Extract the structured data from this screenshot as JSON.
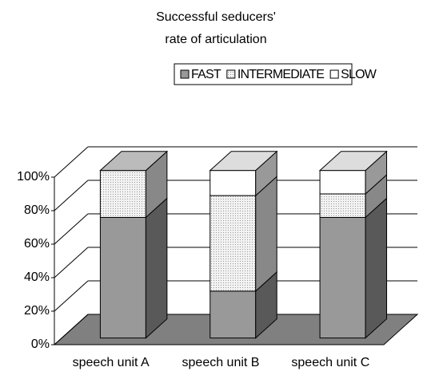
{
  "chart_data": {
    "type": "bar3d_stacked",
    "title": [
      "Successful seducers'",
      "rate of articulation"
    ],
    "categories": [
      "speech unit A",
      "speech unit B",
      "speech unit C"
    ],
    "series": [
      {
        "name": "FAST",
        "color": "#999999",
        "values": [
          72,
          28,
          72
        ]
      },
      {
        "name": "INTERMEDIATE",
        "color": "#e6e6e6",
        "values": [
          28,
          57,
          14
        ]
      },
      {
        "name": "SLOW",
        "color": "#ffffff",
        "values": [
          0,
          15,
          14
        ]
      }
    ],
    "ylim": [
      0,
      100
    ],
    "yticks": [
      {
        "value": 0,
        "label": "0%"
      },
      {
        "value": 20,
        "label": "20%"
      },
      {
        "value": 40,
        "label": "40%"
      },
      {
        "value": 60,
        "label": "60%"
      },
      {
        "value": 80,
        "label": "80%"
      },
      {
        "value": 100,
        "label": "100%"
      }
    ],
    "grid": true,
    "legend": "top"
  }
}
